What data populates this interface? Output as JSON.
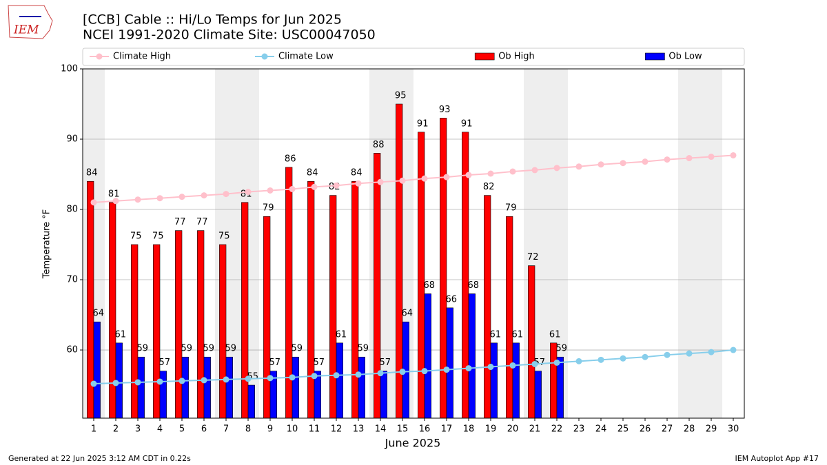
{
  "logo": "IEM",
  "footer_left": "Generated at 22 Jun 2025 3:12 AM CDT in 0.22s",
  "footer_right": "IEM Autoplot App #17",
  "chart_data": {
    "type": "bar",
    "title": "[CCB] Cable :: Hi/Lo Temps for Jun 2025",
    "subtitle": "NCEI 1991-2020 Climate Site: USC00047050",
    "xlabel": "June 2025",
    "ylabel": "Temperature °F",
    "x": [
      1,
      2,
      3,
      4,
      5,
      6,
      7,
      8,
      9,
      10,
      11,
      12,
      13,
      14,
      15,
      16,
      17,
      18,
      19,
      20,
      21,
      22,
      23,
      24,
      25,
      26,
      27,
      28,
      29,
      30
    ],
    "xlim": [
      0.5,
      30.5
    ],
    "xticks": [
      1,
      2,
      3,
      4,
      5,
      6,
      7,
      8,
      9,
      10,
      11,
      12,
      13,
      14,
      15,
      16,
      17,
      18,
      19,
      20,
      21,
      22,
      23,
      24,
      25,
      26,
      27,
      28,
      29,
      30
    ],
    "ylim": [
      50.3,
      100
    ],
    "yticks": [
      60,
      70,
      80,
      90,
      100
    ],
    "grid": true,
    "series": [
      {
        "name": "Climate High",
        "type": "line",
        "color": "#ffc0cb",
        "values": [
          81.0,
          81.2,
          81.4,
          81.6,
          81.8,
          82.0,
          82.2,
          82.5,
          82.7,
          82.9,
          83.2,
          83.4,
          83.7,
          83.9,
          84.1,
          84.4,
          84.6,
          84.9,
          85.1,
          85.4,
          85.6,
          85.9,
          86.1,
          86.4,
          86.6,
          86.8,
          87.1,
          87.3,
          87.5,
          87.7
        ]
      },
      {
        "name": "Climate Low",
        "type": "line",
        "color": "#87ceeb",
        "values": [
          55.2,
          55.3,
          55.4,
          55.5,
          55.6,
          55.7,
          55.8,
          55.9,
          56.0,
          56.1,
          56.3,
          56.4,
          56.5,
          56.7,
          56.9,
          57.0,
          57.2,
          57.4,
          57.6,
          57.8,
          58.0,
          58.2,
          58.4,
          58.6,
          58.8,
          59.0,
          59.3,
          59.5,
          59.7,
          60.0
        ]
      },
      {
        "name": "Ob High",
        "type": "bar",
        "color": "#ff0000",
        "values": [
          84,
          81,
          75,
          75,
          77,
          77,
          75,
          81,
          79,
          86,
          84,
          82,
          84,
          88,
          95,
          91,
          93,
          91,
          82,
          79,
          72,
          61,
          null,
          null,
          null,
          null,
          null,
          null,
          null,
          null
        ]
      },
      {
        "name": "Ob Low",
        "type": "bar",
        "color": "#0000ff",
        "values": [
          64,
          61,
          59,
          57,
          59,
          59,
          59,
          55,
          57,
          59,
          57,
          61,
          59,
          57,
          64,
          68,
          66,
          68,
          61,
          61,
          57,
          59,
          null,
          null,
          null,
          null,
          null,
          null,
          null,
          null
        ]
      }
    ]
  }
}
